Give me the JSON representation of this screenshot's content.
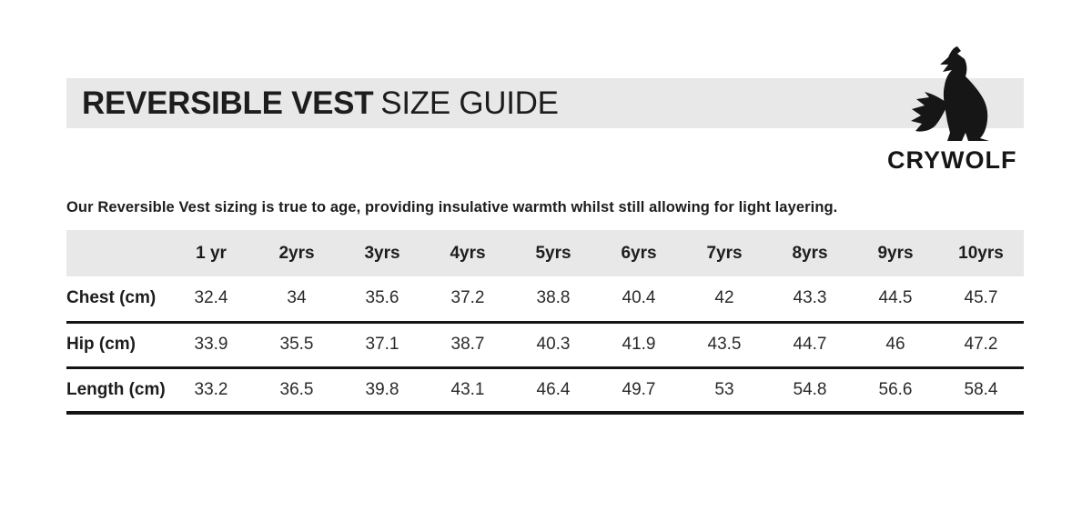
{
  "header": {
    "title_bold": "REVERSIBLE VEST",
    "title_light": "SIZE GUIDE",
    "brand": "CRYWOLF",
    "logo_icon": "howling-wolf-icon"
  },
  "description": "Our Reversible Vest sizing is true to age, providing insulative warmth whilst still allowing for light layering.",
  "colors": {
    "band_gray": "#e8e8e8",
    "text": "#1d1d1d",
    "rule_line": "#141414"
  },
  "chart_data": {
    "type": "table",
    "columns": [
      "",
      "1 yr",
      "2yrs",
      "3yrs",
      "4yrs",
      "5yrs",
      "6yrs",
      "7yrs",
      "8yrs",
      "9yrs",
      "10yrs"
    ],
    "rows": [
      {
        "label": "Chest (cm)",
        "values": [
          32.4,
          34,
          35.6,
          37.2,
          38.8,
          40.4,
          42,
          43.3,
          44.5,
          45.7
        ]
      },
      {
        "label": "Hip (cm)",
        "values": [
          33.9,
          35.5,
          37.1,
          38.7,
          40.3,
          41.9,
          43.5,
          44.7,
          46,
          47.2
        ]
      },
      {
        "label": "Length (cm)",
        "values": [
          33.2,
          36.5,
          39.8,
          43.1,
          46.4,
          49.7,
          53,
          54.8,
          56.6,
          58.4
        ]
      }
    ]
  }
}
